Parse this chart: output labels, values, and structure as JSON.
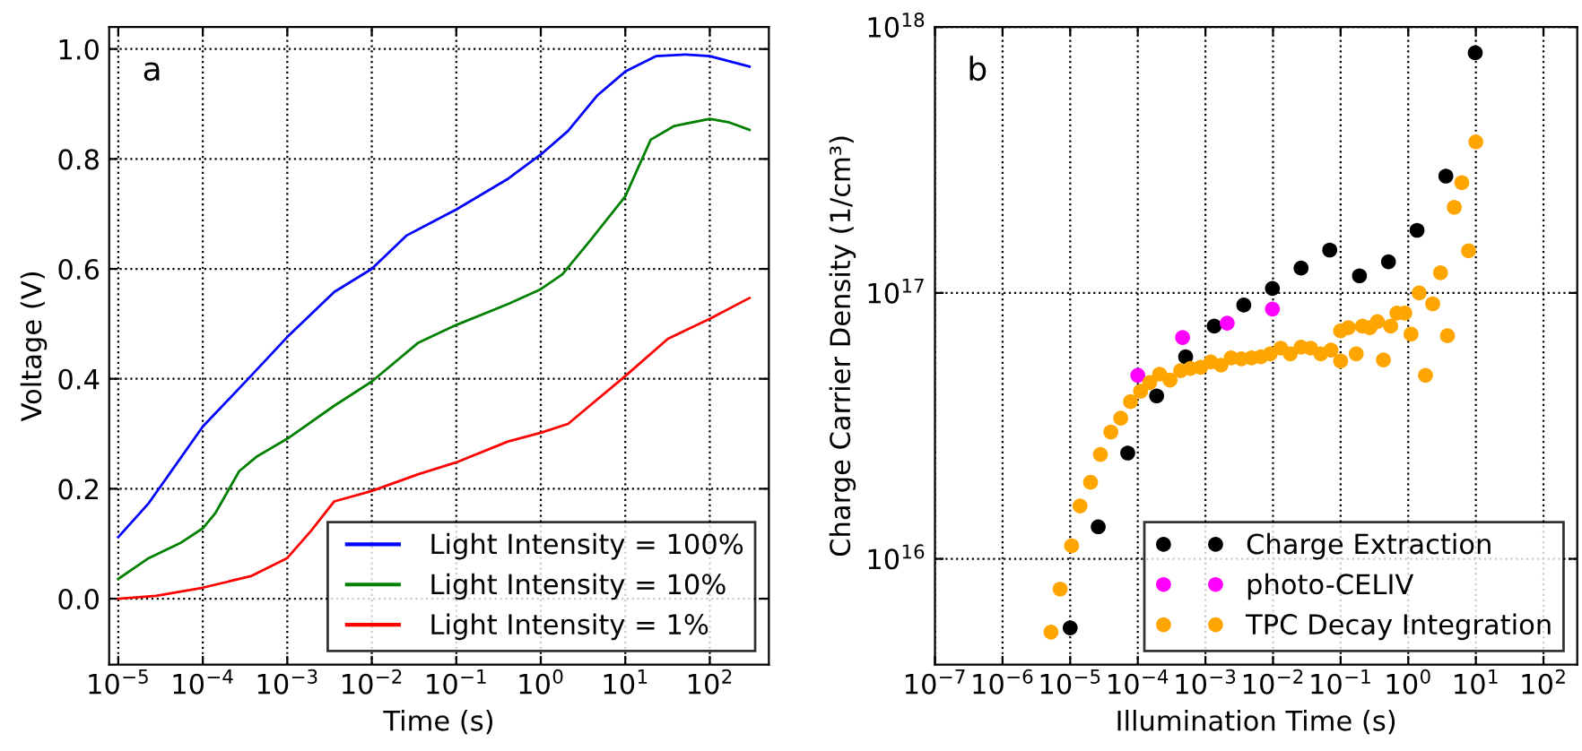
{
  "chart_data": [
    {
      "type": "line",
      "xlabel": "Time (s)",
      "ylabel": "Voltage (V)",
      "annotations": [
        "a"
      ],
      "log": "x",
      "grid": true,
      "legend": "bottom right",
      "marker": "none",
      "line_style": "solid",
      "xlim": [
        7.8e-06,
        500
      ],
      "ylim": [
        -0.12,
        1.04
      ],
      "xticks": [
        {
          "value": 1e-05,
          "label": "10$^{−5}$"
        },
        {
          "value": 0.0001,
          "label": "10$^{−4}$"
        },
        {
          "value": 0.001,
          "label": "10$^{−3}$"
        },
        {
          "value": 0.01,
          "label": "10$^{−2}$"
        },
        {
          "value": 0.1,
          "label": "10$^{−1}$"
        },
        {
          "value": 1,
          "label": "10$^{0}$"
        },
        {
          "value": 10,
          "label": "10$^{1}$"
        },
        {
          "value": 100,
          "label": "10$^{2}$"
        }
      ],
      "yticks": [
        {
          "value": 0,
          "label": "0.0"
        },
        {
          "value": 0.2,
          "label": "0.2"
        },
        {
          "value": 0.4,
          "label": "0.4"
        },
        {
          "value": 0.6,
          "label": "0.6"
        },
        {
          "value": 0.8,
          "label": "0.8"
        },
        {
          "value": 1,
          "label": "1.0"
        }
      ],
      "series": [
        {
          "name": "Light Intensity = 100%",
          "color": "#0000ff",
          "x": [
            1e-05,
            2.3e-05,
            0.0001,
            0.00037,
            0.001,
            0.0036,
            0.01,
            0.026,
            0.1,
            0.41,
            1,
            2.1,
            4.7,
            10,
            23,
            52,
            100,
            295
          ],
          "values": [
            0.112,
            0.174,
            0.313,
            0.405,
            0.476,
            0.558,
            0.6,
            0.661,
            0.708,
            0.764,
            0.808,
            0.851,
            0.916,
            0.959,
            0.987,
            0.99,
            0.987,
            0.968
          ]
        },
        {
          "name": "Light Intensity = 10%",
          "color": "#008000",
          "x": [
            1e-05,
            2.3e-05,
            5.4e-05,
            0.0001,
            0.00014,
            0.00027,
            0.00044,
            0.001,
            0.0036,
            0.01,
            0.035,
            0.1,
            0.41,
            1,
            1.8,
            4,
            10,
            20,
            38,
            100,
            166,
            295
          ],
          "values": [
            0.036,
            0.074,
            0.101,
            0.128,
            0.155,
            0.232,
            0.259,
            0.291,
            0.351,
            0.395,
            0.465,
            0.498,
            0.536,
            0.563,
            0.59,
            0.655,
            0.732,
            0.835,
            0.86,
            0.873,
            0.867,
            0.853
          ]
        },
        {
          "name": "Light Intensity = 1%",
          "color": "#ff0000",
          "x": [
            1e-05,
            2.8e-05,
            0.0001,
            0.00037,
            0.001,
            0.0019,
            0.0036,
            0.01,
            0.035,
            0.1,
            0.41,
            1,
            2.1,
            10,
            32,
            100,
            295
          ],
          "values": [
            0,
            0.005,
            0.02,
            0.041,
            0.074,
            0.123,
            0.177,
            0.196,
            0.226,
            0.248,
            0.286,
            0.302,
            0.318,
            0.405,
            0.473,
            0.509,
            0.547
          ]
        }
      ]
    },
    {
      "type": "scatter",
      "xlabel": "Illumination Time (s)",
      "ylabel": "Charge Carrier Density (1/cm³)",
      "annotations": [
        "b"
      ],
      "log": "xy",
      "grid": true,
      "legend": "bottom right",
      "marker": "circle",
      "xlim": [
        1e-07,
        316
      ],
      "ylim": [
        4000000000000000.0,
        1e+18
      ],
      "xticks": [
        {
          "value": 1e-07,
          "label": "10$^{−7}$"
        },
        {
          "value": 1e-06,
          "label": "10$^{−6}$"
        },
        {
          "value": 1e-05,
          "label": "10$^{−5}$"
        },
        {
          "value": 0.0001,
          "label": "10$^{−4}$"
        },
        {
          "value": 0.001,
          "label": "10$^{−3}$"
        },
        {
          "value": 0.01,
          "label": "10$^{−2}$"
        },
        {
          "value": 0.1,
          "label": "10$^{−1}$"
        },
        {
          "value": 1,
          "label": "10$^{0}$"
        },
        {
          "value": 10,
          "label": "10$^{1}$"
        },
        {
          "value": 100,
          "label": "10$^{2}$"
        }
      ],
      "yticks": [
        {
          "value": 1e+16,
          "label": "10$^{16}$"
        },
        {
          "value": 1e+17,
          "label": "10$^{17}$"
        },
        {
          "value": 1e+18,
          "label": "10$^{18}$"
        }
      ],
      "series": [
        {
          "name": "Charge Extraction",
          "color": "#000000",
          "x": [
            1e-05,
            2.6e-05,
            7.1e-05,
            0.00019,
            0.00051,
            0.00135,
            0.0037,
            0.0098,
            0.026,
            0.069,
            0.19,
            0.51,
            1.35,
            3.6,
            9.8
          ],
          "values": [
            5500000000000000.0,
            1.32e+16,
            2.5e+16,
            4.1e+16,
            5.75e+16,
            7.5e+16,
            9e+16,
            1.04e+17,
            1.24e+17,
            1.45e+17,
            1.16e+17,
            1.31e+17,
            1.72e+17,
            2.75e+17,
            8e+17
          ]
        },
        {
          "name": "photo-CELIV",
          "color": "#ff00ff",
          "x": [
            0.0001,
            0.00046,
            0.0021,
            0.0098
          ],
          "values": [
            4.9e+16,
            6.8e+16,
            7.7e+16,
            8.7e+16
          ]
        },
        {
          "name": "TPC Decay Integration",
          "color": "#ffa500",
          "x": [
            5.2e-06,
            7.1e-06,
            1.05e-05,
            1.4e-05,
            2e-05,
            2.8e-05,
            4e-05,
            5.6e-05,
            7.8e-05,
            0.00011,
            0.00015,
            0.00021,
            0.0003,
            0.00043,
            0.0006,
            0.00085,
            0.0012,
            0.0017,
            0.0024,
            0.0034,
            0.0048,
            0.0066,
            0.0091,
            0.013,
            0.018,
            0.026,
            0.036,
            0.051,
            0.072,
            0.1,
            0.1,
            0.13,
            0.17,
            0.21,
            0.27,
            0.35,
            0.43,
            0.55,
            0.68,
            0.89,
            1.1,
            1.45,
            1.8,
            2.3,
            3.0,
            3.8,
            4.8,
            6.2,
            7.8,
            10
          ],
          "values": [
            5300000000000000.0,
            7700000000000000.0,
            1.12e+16,
            1.58e+16,
            1.94e+16,
            2.47e+16,
            3e+16,
            3.38e+16,
            3.9e+16,
            4.27e+16,
            4.6e+16,
            4.95e+16,
            4.7e+16,
            5.1e+16,
            5.2e+16,
            5.25e+16,
            5.5e+16,
            5.35e+16,
            5.7e+16,
            5.65e+16,
            5.7e+16,
            5.75e+16,
            5.9e+16,
            6.2e+16,
            5.9e+16,
            6.25e+16,
            6.2e+16,
            5.9e+16,
            6.1e+16,
            5.55e+16,
            7.2e+16,
            7.4e+16,
            5.9e+16,
            7.5e+16,
            7.4e+16,
            7.8e+16,
            5.6e+16,
            7.5e+16,
            8.4e+16,
            8.4e+16,
            7e+16,
            1e+17,
            4.9e+16,
            9.1e+16,
            1.19e+17,
            6.9e+16,
            2.1e+17,
            2.6e+17,
            1.44e+17,
            3.7e+17
          ]
        }
      ]
    }
  ]
}
